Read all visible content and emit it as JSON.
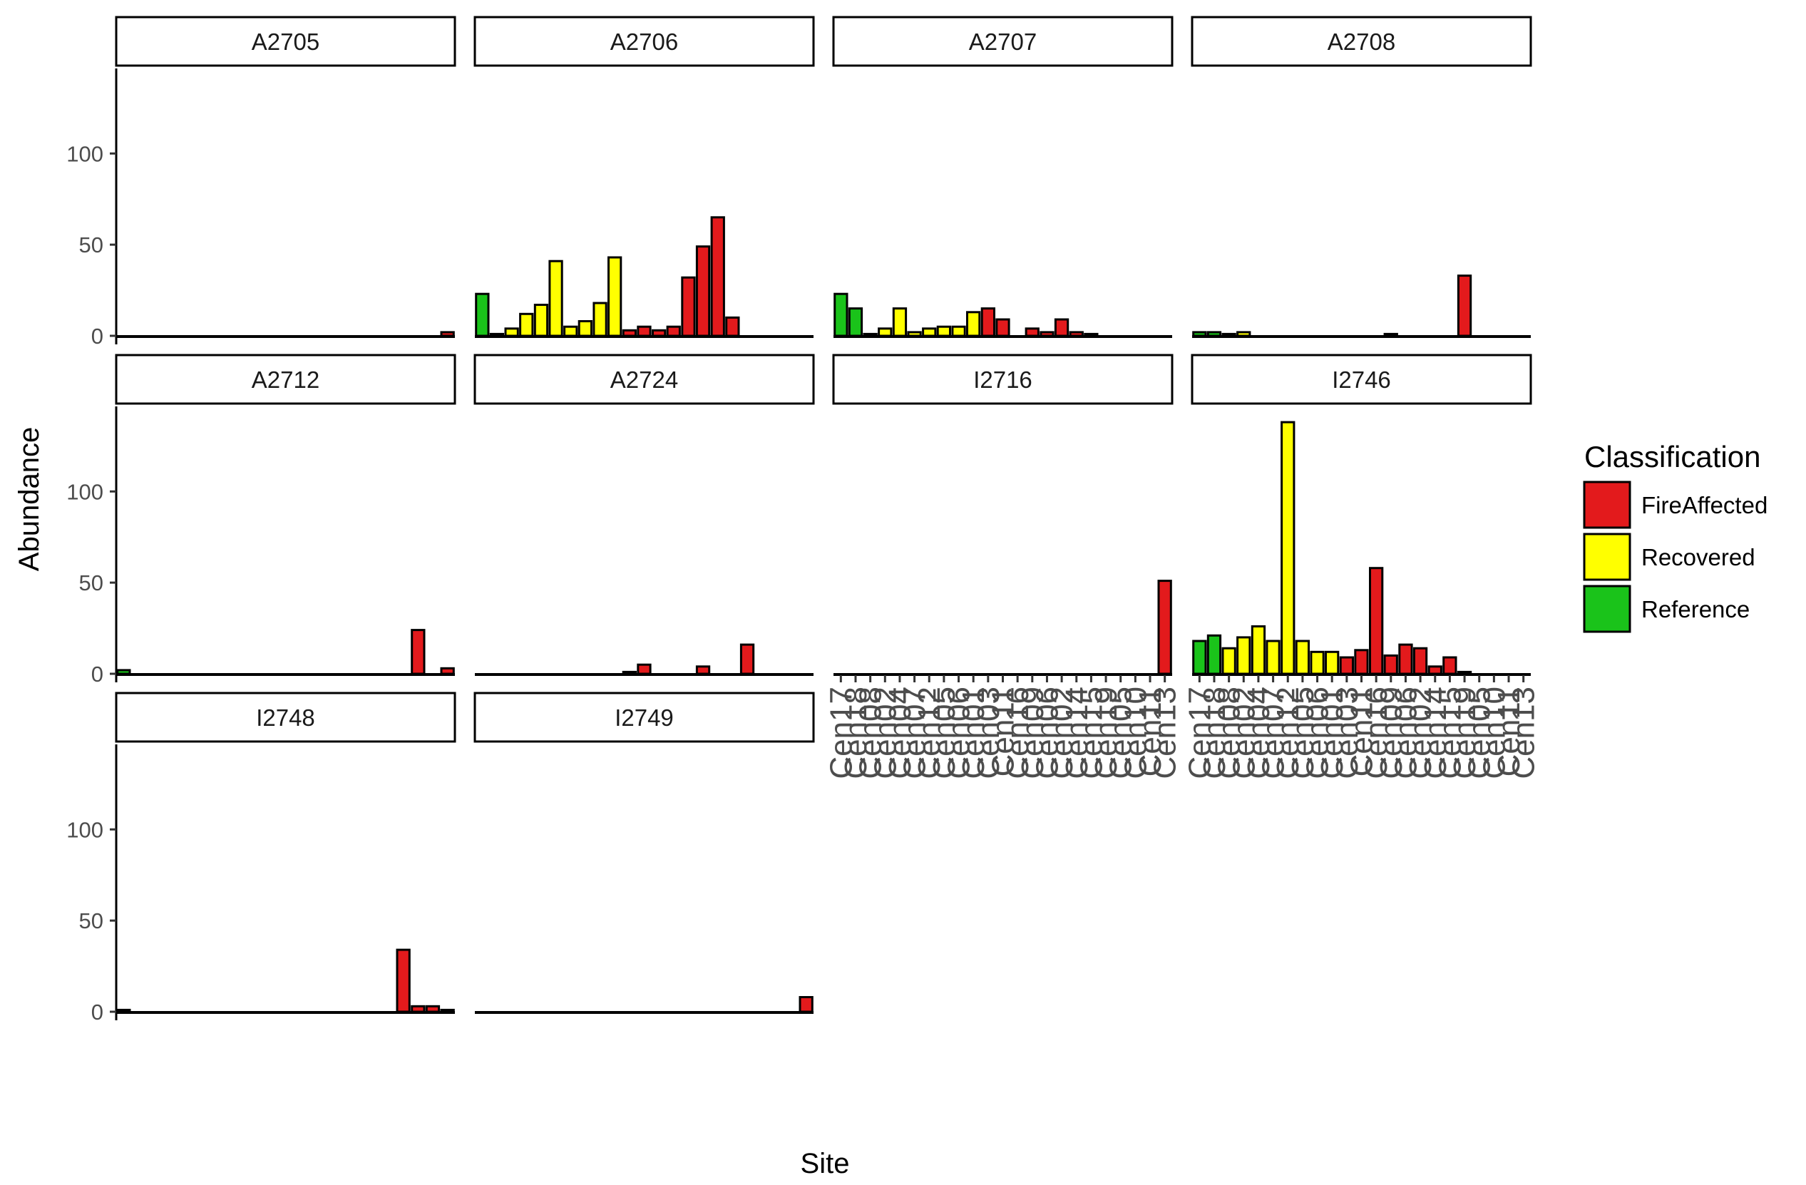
{
  "chart_data": {
    "type": "bar",
    "facet_by": "taxon",
    "xlabel": "Site",
    "ylabel": "Abundance",
    "ylim": [
      0,
      140
    ],
    "y_ticks": [
      0,
      50,
      100
    ],
    "grid": false,
    "legend": {
      "title": "Classification",
      "position": "right",
      "entries": [
        {
          "name": "FireAffected",
          "color": "#E31A1C"
        },
        {
          "name": "Recovered",
          "color": "#FFFF00"
        },
        {
          "name": "Reference",
          "color": "#1AC31A"
        }
      ]
    },
    "sites": [
      "Cen17",
      "Cen18",
      "Cen08",
      "Cen02",
      "Cen04",
      "Cen07",
      "Cen12",
      "Cen05",
      "Cen06",
      "Cen01",
      "Cen03",
      "Cen11",
      "Cen16",
      "Cen09",
      "Cen06",
      "Cen02",
      "Cen14",
      "Cen15",
      "Cen19",
      "Cen05",
      "Cen10",
      "Cen11",
      "Cen13"
    ],
    "site_classes": [
      "Reference",
      "Reference",
      "Recovered",
      "Recovered",
      "Recovered",
      "Recovered",
      "Recovered",
      "Recovered",
      "Recovered",
      "Recovered",
      "FireAffected",
      "FireAffected",
      "FireAffected",
      "FireAffected",
      "FireAffected",
      "FireAffected",
      "FireAffected",
      "FireAffected",
      "FireAffected",
      "FireAffected",
      "FireAffected",
      "FireAffected",
      "FireAffected"
    ],
    "panels": [
      {
        "name": "A2705",
        "values": [
          0,
          0,
          0,
          0,
          0,
          0,
          0,
          0,
          0,
          0,
          0,
          0,
          0,
          0,
          0,
          0,
          0,
          0,
          0,
          0,
          0,
          0,
          2
        ]
      },
      {
        "name": "A2706",
        "values": [
          23,
          1,
          4,
          12,
          17,
          41,
          5,
          8,
          18,
          43,
          3,
          5,
          3,
          5,
          32,
          49,
          65,
          10,
          0,
          0,
          0,
          0,
          0
        ]
      },
      {
        "name": "A2707",
        "values": [
          23,
          15,
          1,
          4,
          15,
          2,
          4,
          5,
          5,
          13,
          15,
          9,
          0,
          4,
          2,
          9,
          2,
          1,
          0,
          0,
          0,
          0,
          0
        ]
      },
      {
        "name": "A2708",
        "values": [
          2,
          2,
          1,
          2,
          0,
          0,
          0,
          0,
          0,
          0,
          0,
          0,
          0,
          1,
          0,
          0,
          0,
          0,
          33,
          0,
          0,
          0,
          0
        ]
      },
      {
        "name": "A2712",
        "values": [
          2,
          0,
          0,
          0,
          0,
          0,
          0,
          0,
          0,
          0,
          0,
          0,
          0,
          0,
          0,
          0,
          0,
          0,
          0,
          0,
          24,
          0,
          3
        ]
      },
      {
        "name": "A2724",
        "values": [
          0,
          0,
          0,
          0,
          0,
          0,
          0,
          0,
          0,
          0,
          1,
          5,
          0,
          0,
          0,
          4,
          0,
          0,
          16,
          0,
          0,
          0,
          0
        ]
      },
      {
        "name": "I2716",
        "values": [
          0,
          0,
          0,
          0,
          0,
          0,
          0,
          0,
          0,
          0,
          0,
          0,
          0,
          0,
          0,
          0,
          0,
          0,
          0,
          0,
          0,
          0,
          51
        ]
      },
      {
        "name": "I2746",
        "values": [
          18,
          21,
          14,
          20,
          26,
          18,
          138,
          18,
          12,
          12,
          9,
          13,
          58,
          10,
          16,
          14,
          4,
          9,
          1,
          0,
          0,
          0,
          0
        ]
      },
      {
        "name": "I2748",
        "values": [
          1,
          0,
          0,
          0,
          0,
          0,
          0,
          0,
          0,
          0,
          0,
          0,
          0,
          0,
          0,
          0,
          0,
          0,
          0,
          34,
          3,
          3,
          1
        ]
      },
      {
        "name": "I2749",
        "values": [
          0,
          0,
          0,
          0,
          0,
          0,
          0,
          0,
          0,
          0,
          0,
          0,
          0,
          0,
          0,
          0,
          0,
          0,
          0,
          0,
          0,
          0,
          8
        ]
      }
    ]
  }
}
